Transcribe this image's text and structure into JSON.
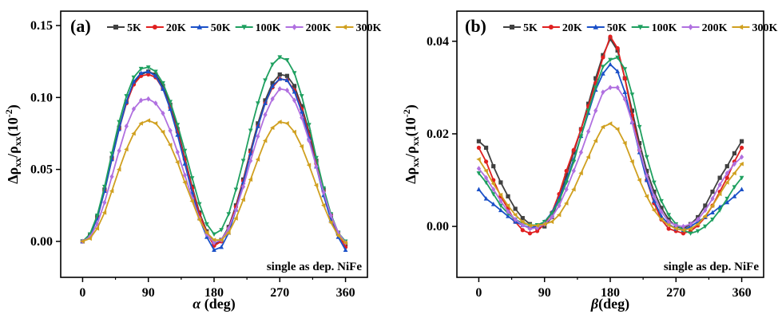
{
  "chart_data": [
    {
      "type": "line",
      "panel_label": "(a)",
      "xlabel_symbol": "α",
      "xlabel_unit": " (deg)",
      "ylabel_text": "Δρ",
      "ylabel_sub": "xx",
      "ylabel_slash": "/ρ",
      "ylabel_sub2": "xx",
      "ylabel_scale": "(10",
      "ylabel_exp": "-2",
      "ylabel_close": ")",
      "xlim": [
        -30,
        390
      ],
      "ylim": [
        -0.025,
        0.16
      ],
      "xticks": [
        0,
        90,
        180,
        270,
        360
      ],
      "yticks": [
        0.0,
        0.05,
        0.1,
        0.15
      ],
      "ytick_labels": [
        "0.00",
        "0.05",
        "0.10",
        "0.15"
      ],
      "annotation": "single as dep. NiFe",
      "legend_position": "top",
      "x": [
        0,
        10,
        20,
        30,
        40,
        50,
        60,
        70,
        80,
        90,
        100,
        110,
        120,
        130,
        140,
        150,
        160,
        170,
        180,
        190,
        200,
        210,
        220,
        230,
        240,
        250,
        260,
        270,
        280,
        290,
        300,
        310,
        320,
        330,
        340,
        350,
        360
      ],
      "series": [
        {
          "name": "5K",
          "color": "#404040",
          "marker": "square",
          "values": [
            0.0,
            0.004,
            0.017,
            0.036,
            0.058,
            0.079,
            0.097,
            0.11,
            0.116,
            0.118,
            0.116,
            0.108,
            0.095,
            0.078,
            0.058,
            0.038,
            0.02,
            0.007,
            -0.002,
            0.001,
            0.01,
            0.025,
            0.043,
            0.063,
            0.082,
            0.098,
            0.11,
            0.116,
            0.115,
            0.108,
            0.094,
            0.076,
            0.056,
            0.036,
            0.018,
            0.006,
            -0.002
          ]
        },
        {
          "name": "20K",
          "color": "#e02020",
          "marker": "circle",
          "values": [
            0.0,
            0.004,
            0.016,
            0.035,
            0.057,
            0.078,
            0.096,
            0.109,
            0.115,
            0.116,
            0.114,
            0.106,
            0.093,
            0.076,
            0.057,
            0.037,
            0.019,
            0.006,
            -0.003,
            0.0,
            0.009,
            0.024,
            0.042,
            0.062,
            0.08,
            0.096,
            0.107,
            0.113,
            0.112,
            0.105,
            0.092,
            0.074,
            0.054,
            0.035,
            0.018,
            0.005,
            -0.004
          ]
        },
        {
          "name": "50K",
          "color": "#1a50c8",
          "marker": "triangle-up",
          "values": [
            0.0,
            0.004,
            0.016,
            0.035,
            0.057,
            0.078,
            0.097,
            0.111,
            0.117,
            0.118,
            0.115,
            0.106,
            0.092,
            0.074,
            0.054,
            0.034,
            0.016,
            0.003,
            -0.006,
            -0.004,
            0.006,
            0.022,
            0.041,
            0.061,
            0.08,
            0.096,
            0.108,
            0.113,
            0.112,
            0.104,
            0.09,
            0.072,
            0.052,
            0.032,
            0.015,
            0.003,
            -0.006
          ]
        },
        {
          "name": "100K",
          "color": "#1fa060",
          "marker": "triangle-down",
          "values": [
            0.0,
            0.005,
            0.018,
            0.038,
            0.061,
            0.083,
            0.101,
            0.114,
            0.12,
            0.121,
            0.118,
            0.11,
            0.097,
            0.081,
            0.063,
            0.044,
            0.026,
            0.012,
            0.005,
            0.008,
            0.019,
            0.036,
            0.056,
            0.077,
            0.096,
            0.112,
            0.123,
            0.128,
            0.126,
            0.117,
            0.101,
            0.081,
            0.058,
            0.037,
            0.019,
            0.006,
            0.0
          ]
        },
        {
          "name": "200K",
          "color": "#b070e0",
          "marker": "diamond",
          "values": [
            0.0,
            0.003,
            0.012,
            0.027,
            0.045,
            0.063,
            0.08,
            0.092,
            0.098,
            0.099,
            0.096,
            0.089,
            0.077,
            0.062,
            0.046,
            0.03,
            0.016,
            0.005,
            -0.001,
            0.001,
            0.009,
            0.022,
            0.038,
            0.056,
            0.073,
            0.088,
            0.099,
            0.106,
            0.105,
            0.098,
            0.086,
            0.07,
            0.052,
            0.034,
            0.018,
            0.006,
            -0.001
          ]
        },
        {
          "name": "300K",
          "color": "#d0a020",
          "marker": "triangle-left",
          "values": [
            0.0,
            0.002,
            0.009,
            0.02,
            0.035,
            0.05,
            0.064,
            0.075,
            0.082,
            0.084,
            0.082,
            0.076,
            0.067,
            0.055,
            0.041,
            0.028,
            0.015,
            0.006,
            0.001,
            0.001,
            0.006,
            0.016,
            0.029,
            0.043,
            0.057,
            0.07,
            0.079,
            0.083,
            0.082,
            0.076,
            0.066,
            0.053,
            0.039,
            0.025,
            0.013,
            0.004,
            -0.001
          ]
        }
      ]
    },
    {
      "type": "line",
      "panel_label": "(b)",
      "xlabel_symbol": "β",
      "xlabel_unit": "(deg)",
      "ylabel_text": "Δρ",
      "ylabel_sub": "xx",
      "ylabel_slash": "/ρ",
      "ylabel_sub2": "xx",
      "ylabel_scale": "(10",
      "ylabel_exp": "-2",
      "ylabel_close": ")",
      "xlim": [
        -30,
        390
      ],
      "ylim": [
        -0.011,
        0.0465
      ],
      "xticks": [
        0,
        90,
        180,
        270,
        360
      ],
      "yticks": [
        0.0,
        0.02,
        0.04
      ],
      "ytick_labels": [
        "0.00",
        "0.02",
        "0.04"
      ],
      "annotation": "single as dep. NiFe",
      "legend_position": "top",
      "x": [
        0,
        10,
        20,
        30,
        40,
        50,
        60,
        70,
        80,
        90,
        100,
        110,
        120,
        130,
        140,
        150,
        160,
        170,
        180,
        190,
        200,
        210,
        220,
        230,
        240,
        250,
        260,
        270,
        280,
        290,
        300,
        310,
        320,
        330,
        340,
        350,
        360
      ],
      "series": [
        {
          "name": "5K",
          "color": "#404040",
          "marker": "square",
          "values": [
            0.0184,
            0.017,
            0.013,
            0.0095,
            0.0065,
            0.0038,
            0.0018,
            0.0005,
            -0.0002,
            0.0,
            0.002,
            0.006,
            0.011,
            0.016,
            0.021,
            0.0265,
            0.032,
            0.037,
            0.0405,
            0.038,
            0.032,
            0.025,
            0.018,
            0.012,
            0.0075,
            0.004,
            0.0015,
            0.0,
            -0.0005,
            0.0005,
            0.002,
            0.0045,
            0.0075,
            0.0105,
            0.013,
            0.0158,
            0.0184
          ]
        },
        {
          "name": "20K",
          "color": "#e02020",
          "marker": "circle",
          "values": [
            0.017,
            0.014,
            0.01,
            0.0065,
            0.0038,
            0.001,
            -0.0008,
            -0.0015,
            -0.001,
            0.0005,
            0.003,
            0.007,
            0.012,
            0.0165,
            0.021,
            0.026,
            0.031,
            0.0365,
            0.041,
            0.0385,
            0.032,
            0.024,
            0.0165,
            0.01,
            0.005,
            0.0015,
            -0.0005,
            -0.001,
            -0.0015,
            -0.001,
            0.0002,
            0.002,
            0.0045,
            0.0075,
            0.0105,
            0.014,
            0.017
          ]
        },
        {
          "name": "50K",
          "color": "#1a50c8",
          "marker": "triangle-up",
          "values": [
            0.008,
            0.006,
            0.0048,
            0.0035,
            0.0022,
            0.001,
            0.0003,
            -0.0003,
            0.0,
            0.001,
            0.003,
            0.006,
            0.01,
            0.0145,
            0.0195,
            0.0245,
            0.0295,
            0.033,
            0.035,
            0.0335,
            0.029,
            0.0225,
            0.016,
            0.01,
            0.0055,
            0.0022,
            0.0005,
            -0.0005,
            -0.0008,
            0.0,
            0.001,
            0.002,
            0.003,
            0.0042,
            0.0052,
            0.0065,
            0.008
          ]
        },
        {
          "name": "100K",
          "color": "#1fa060",
          "marker": "triangle-down",
          "values": [
            0.0115,
            0.0095,
            0.007,
            0.0045,
            0.0028,
            0.0015,
            0.0007,
            0.0003,
            0.0003,
            0.001,
            0.0028,
            0.0055,
            0.0095,
            0.014,
            0.0195,
            0.025,
            0.03,
            0.0345,
            0.036,
            0.0365,
            0.034,
            0.0285,
            0.0215,
            0.015,
            0.0095,
            0.0055,
            0.0025,
            0.0005,
            -0.0008,
            -0.0015,
            -0.001,
            0.0,
            0.0015,
            0.0035,
            0.006,
            0.0085,
            0.0105
          ]
        },
        {
          "name": "200K",
          "color": "#b070e0",
          "marker": "diamond",
          "values": [
            0.0125,
            0.0105,
            0.008,
            0.0055,
            0.0032,
            0.0015,
            0.0003,
            -0.0005,
            -0.0003,
            0.0005,
            0.002,
            0.0045,
            0.008,
            0.012,
            0.016,
            0.0205,
            0.025,
            0.029,
            0.03,
            0.03,
            0.0275,
            0.0225,
            0.0165,
            0.011,
            0.0065,
            0.0032,
            0.001,
            0.0002,
            0.0,
            0.0005,
            0.0015,
            0.0035,
            0.006,
            0.009,
            0.0115,
            0.0135,
            0.015
          ]
        },
        {
          "name": "300K",
          "color": "#d0a020",
          "marker": "triangle-left",
          "values": [
            0.0145,
            0.012,
            0.0092,
            0.0068,
            0.0045,
            0.0025,
            0.001,
            0.0002,
            0.0002,
            0.0005,
            0.001,
            0.0025,
            0.005,
            0.008,
            0.0115,
            0.015,
            0.0185,
            0.0215,
            0.0222,
            0.021,
            0.018,
            0.014,
            0.01,
            0.0065,
            0.0035,
            0.0015,
            0.0003,
            -0.0005,
            -0.0008,
            -0.0005,
            0.0005,
            0.0022,
            0.0045,
            0.007,
            0.0095,
            0.0115,
            0.0135
          ]
        }
      ]
    }
  ]
}
